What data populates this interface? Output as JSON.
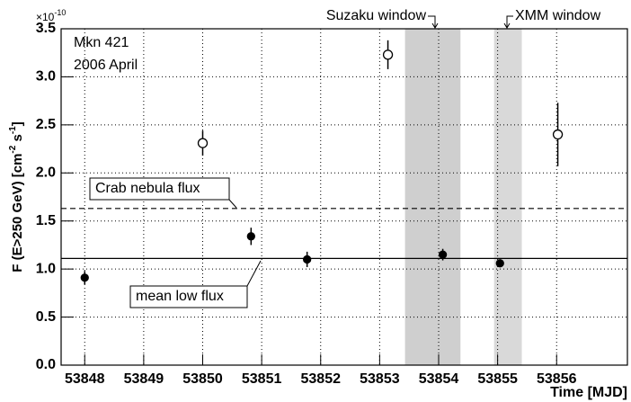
{
  "chart_data": {
    "type": "errorbar",
    "annotations": [
      "Mkn 421",
      "2006 April",
      "Suzaku window",
      "XMM window",
      "Crab nebula flux",
      "mean low flux"
    ],
    "xlabel": "Time [MJD]",
    "ylabel": [
      "F (E>250 GeV)  [cm",
      "-2",
      " s",
      "-1",
      "]"
    ],
    "yexponent": [
      "×10",
      "-10"
    ],
    "x": [
      53848,
      53850,
      53850.82,
      53851.77,
      53853.14,
      53854.07,
      53855.04,
      53856.02
    ],
    "values": [
      0.91,
      2.31,
      1.34,
      1.1,
      3.23,
      1.15,
      1.06,
      2.4
    ],
    "errors": [
      0.07,
      0.13,
      0.09,
      0.08,
      0.15,
      0.06,
      0.04,
      0.33
    ],
    "markers": [
      "filled",
      "open",
      "filled",
      "filled",
      "open",
      "filled",
      "filled",
      "open"
    ],
    "color": "#000000",
    "hlines": [
      {
        "value": 1.63,
        "style": "dashed"
      },
      {
        "value": 1.11,
        "style": "solid"
      }
    ],
    "bands": [
      {
        "from": 53853.43,
        "to": 53854.37,
        "color": "#cfcfcf"
      },
      {
        "from": 53854.94,
        "to": 53855.41,
        "color": "#d9d9d9"
      }
    ],
    "xlim": [
      53847.6,
      53857.2
    ],
    "xticks": [
      53848,
      53849,
      53850,
      53851,
      53852,
      53853,
      53854,
      53855,
      53856
    ],
    "ylim": [
      0,
      3.5
    ],
    "yticks": [
      {
        "value": 0,
        "label": "0.0"
      },
      0.5,
      {
        "value": 1,
        "label": "1.0"
      },
      1.5,
      {
        "value": 2,
        "label": "2.0"
      },
      2.5,
      {
        "value": 3,
        "label": "3.0"
      },
      3.5
    ],
    "grid": true
  }
}
